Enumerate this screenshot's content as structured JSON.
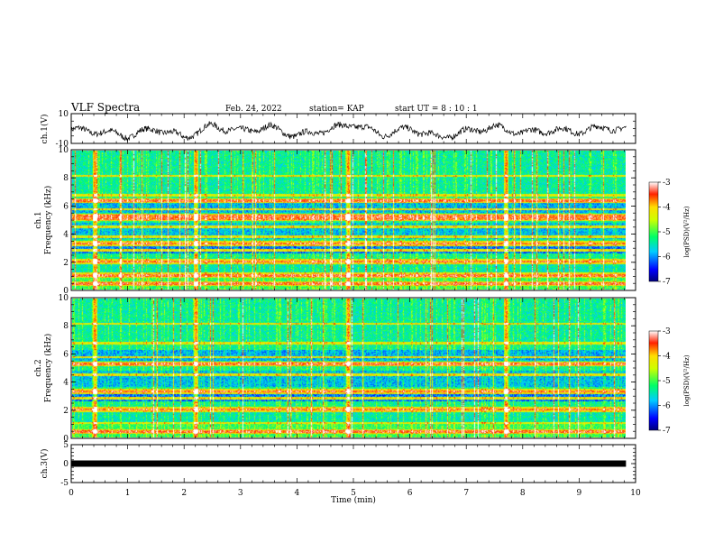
{
  "header": {
    "title": "VLF Spectra",
    "date": "Feb. 24, 2022",
    "station": "station= KAP",
    "start": "start  UT =   8 : 10 : 1"
  },
  "chart_data": [
    {
      "type": "line",
      "name": "ch1-waveform",
      "ylabel": "ch.1(V)",
      "ylim": [
        -10,
        10
      ],
      "yticks": [
        "10",
        "-10"
      ],
      "x_range": [
        0,
        9.83
      ],
      "approx_x": [
        0,
        0.5,
        1.0,
        1.5,
        2.0,
        2.5,
        3.0,
        3.5,
        4.0,
        4.5,
        5.0,
        5.5,
        6.0,
        6.5,
        7.0,
        7.5,
        8.0,
        8.5,
        9.0,
        9.5,
        9.83
      ],
      "approx_y": [
        -1,
        -2,
        -5,
        0,
        -6,
        2,
        -2,
        1,
        -5,
        -1,
        3,
        -4,
        0,
        -6,
        -2,
        1,
        -3,
        -1,
        -2,
        1,
        -1
      ]
    },
    {
      "type": "heatmap",
      "name": "ch1-spectrogram",
      "ylabel": "ch.1\nFrequency  (kHz)",
      "ylim": [
        0,
        10
      ],
      "yticks": [
        "0",
        "2",
        "4",
        "6",
        "8",
        "10"
      ],
      "x_range": [
        0,
        9.83
      ],
      "colorbar": {
        "label": "log(PSD)(V²/Hz)",
        "range": [
          -7,
          -3
        ],
        "ticks": [
          "-3",
          "-4",
          "-5",
          "-6",
          "-7"
        ]
      },
      "strong_bands_khz": [
        0.4,
        1.0,
        2.0,
        3.3,
        5.1,
        5.3,
        6.4
      ],
      "weak_bands_khz": [
        2.8,
        3.8,
        4.5,
        5.8,
        6.8,
        8.2
      ]
    },
    {
      "type": "heatmap",
      "name": "ch2-spectrogram",
      "ylabel": "ch.2\nFrequency  (kHz)",
      "ylim": [
        0,
        10
      ],
      "yticks": [
        "0",
        "2",
        "4",
        "6",
        "8",
        "10"
      ],
      "x_range": [
        0,
        9.83
      ],
      "colorbar": {
        "label": "log(PSD)(V²/Hz)",
        "range": [
          -7,
          -3
        ],
        "ticks": [
          "-3",
          "-4",
          "-5",
          "-6",
          "-7"
        ]
      },
      "strong_bands_khz": [
        0.4,
        2.0,
        3.3,
        5.3
      ],
      "weak_bands_khz": [
        1.0,
        2.8,
        4.5,
        5.8,
        6.8,
        8.2
      ]
    },
    {
      "type": "line",
      "name": "ch3-waveform",
      "ylabel": "ch.3(V)",
      "ylim": [
        -5,
        5
      ],
      "yticks": [
        "5",
        "0",
        "-5"
      ],
      "x_range": [
        0,
        9.83
      ],
      "approx_x": [
        0,
        9.83
      ],
      "approx_y": [
        0,
        0
      ]
    }
  ],
  "xaxis": {
    "label": "Time  (min)",
    "ticks": [
      "0",
      "1",
      "2",
      "3",
      "4",
      "5",
      "6",
      "7",
      "8",
      "9",
      "10"
    ],
    "range": [
      0,
      10
    ]
  }
}
